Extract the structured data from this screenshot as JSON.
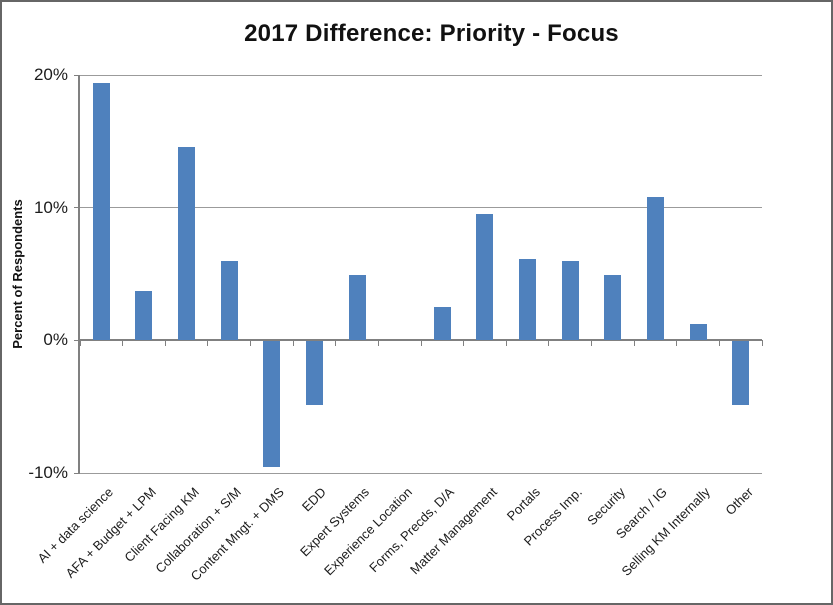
{
  "chart_data": {
    "type": "bar",
    "title": "2017 Difference: Priority - Focus",
    "xlabel": "",
    "ylabel": "Percent of Respondents",
    "categories": [
      "AI + data science",
      "AFA + Budget + LPM",
      "Client Facing KM",
      "Collaboration + S/M",
      "Content Mngt. + DMS",
      "EDD",
      "Expert Systems",
      "Experience Location",
      "Forms, Precds, D/A",
      "Matter Management",
      "Portals",
      "Process Imp.",
      "Security",
      "Search / IG",
      "Selling KM Internally",
      "Other"
    ],
    "values": [
      19.4,
      3.7,
      14.6,
      6.0,
      -9.5,
      -4.8,
      4.9,
      0.0,
      2.5,
      9.5,
      6.1,
      6.0,
      4.9,
      10.8,
      1.2,
      -4.8
    ],
    "ylim": [
      -10,
      20
    ],
    "yticks": [
      {
        "value": 20,
        "label": "20%"
      },
      {
        "value": 10,
        "label": "10%"
      },
      {
        "value": 0,
        "label": "0%"
      },
      {
        "value": -10,
        "label": "-10%"
      }
    ],
    "grid": "horizontal",
    "legend_position": "none",
    "bar_color": "#4f81bd",
    "axis_color": "#808080",
    "gridline_color": "#9b9b9b",
    "title_color": "#111111",
    "label_color": "#1c1c1c"
  }
}
